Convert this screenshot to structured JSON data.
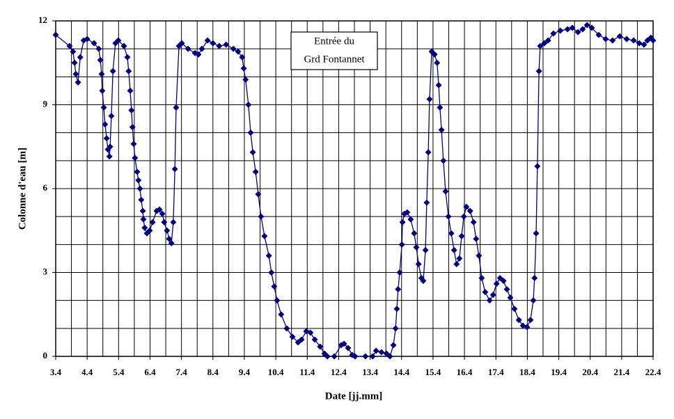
{
  "chart_data": {
    "type": "line",
    "xlabel": "Date [jj.mm]",
    "ylabel": "Colonne d'eau [m]",
    "annotation": [
      "Entrée du",
      "Grd Fontannet"
    ],
    "xlim": [
      3.4,
      22.4
    ],
    "ylim": [
      0,
      12
    ],
    "xticks": [
      3.4,
      4.4,
      5.4,
      6.4,
      7.4,
      8.4,
      9.4,
      10.4,
      11.4,
      12.4,
      13.4,
      14.4,
      15.4,
      16.4,
      17.4,
      18.4,
      19.4,
      20.4,
      21.4,
      22.4
    ],
    "yticks": [
      0,
      3,
      6,
      9,
      12
    ],
    "x_minor_grid": [
      3.9,
      4.9,
      5.9,
      6.9,
      7.9,
      8.9,
      9.9,
      10.9,
      11.9,
      12.9,
      13.9,
      14.9,
      15.9,
      16.9,
      17.9,
      18.9,
      19.9,
      20.9,
      21.9
    ],
    "y_minor_grid": [
      1,
      2,
      4,
      5,
      7,
      8,
      10,
      11
    ],
    "grid": true,
    "series": [
      {
        "color": "#000080",
        "marker": "diamond",
        "x": [
          3.4,
          3.84,
          3.95,
          4.0,
          4.04,
          4.11,
          4.18,
          4.29,
          4.4,
          4.62,
          4.77,
          4.82,
          4.86,
          4.88,
          4.93,
          4.97,
          5.02,
          5.06,
          5.11,
          5.13,
          5.17,
          5.22,
          5.3,
          5.39,
          5.57,
          5.68,
          5.72,
          5.77,
          5.81,
          5.84,
          5.88,
          5.92,
          5.99,
          6.03,
          6.08,
          6.12,
          6.17,
          6.19,
          6.23,
          6.3,
          6.39,
          6.48,
          6.61,
          6.7,
          6.79,
          6.85,
          6.94,
          7.01,
          7.08,
          7.14,
          7.19,
          7.23,
          7.32,
          7.41,
          7.61,
          7.83,
          7.94,
          8.05,
          8.23,
          8.4,
          8.6,
          8.82,
          9.05,
          9.2,
          9.33,
          9.38,
          9.44,
          9.53,
          9.6,
          9.67,
          9.76,
          9.84,
          9.93,
          10.04,
          10.18,
          10.26,
          10.35,
          10.44,
          10.57,
          10.75,
          10.93,
          11.11,
          11.22,
          11.37,
          11.5,
          11.64,
          11.81,
          11.95,
          12.04,
          12.26,
          12.48,
          12.57,
          12.7,
          12.83,
          12.92,
          13.25,
          13.48,
          13.59,
          13.76,
          13.92,
          14.03,
          14.14,
          14.21,
          14.25,
          14.29,
          14.34,
          14.41,
          14.43,
          14.49,
          14.58,
          14.69,
          14.8,
          14.87,
          14.94,
          15.03,
          15.09,
          15.16,
          15.2,
          15.25,
          15.29,
          15.36,
          15.45,
          15.53,
          15.58,
          15.62,
          15.67,
          15.73,
          15.8,
          15.89,
          15.98,
          16.07,
          16.15,
          16.24,
          16.31,
          16.38,
          16.46,
          16.58,
          16.69,
          16.77,
          16.86,
          16.95,
          17.06,
          17.2,
          17.31,
          17.42,
          17.53,
          17.64,
          17.75,
          17.86,
          17.99,
          18.13,
          18.26,
          18.39,
          18.5,
          18.59,
          18.63,
          18.68,
          18.72,
          18.77,
          18.81,
          18.94,
          19.06,
          19.23,
          19.45,
          19.68,
          19.83,
          20.01,
          20.16,
          20.3,
          20.45,
          20.67,
          20.89,
          21.11,
          21.34,
          21.56,
          21.78,
          21.96,
          22.11,
          22.22,
          22.33,
          22.4
        ],
        "values": [
          11.5,
          11.1,
          10.9,
          10.5,
          10.1,
          9.8,
          10.7,
          11.3,
          11.35,
          11.2,
          11.0,
          10.6,
          10.1,
          9.5,
          8.9,
          8.3,
          7.8,
          7.4,
          7.15,
          7.5,
          8.6,
          10.2,
          11.2,
          11.3,
          11.1,
          10.7,
          10.2,
          9.5,
          8.8,
          8.2,
          7.6,
          7.1,
          6.6,
          6.3,
          6.0,
          5.6,
          5.2,
          4.9,
          4.6,
          4.4,
          4.5,
          4.8,
          5.2,
          5.25,
          5.1,
          4.8,
          4.5,
          4.2,
          4.05,
          4.8,
          6.7,
          8.9,
          11.1,
          11.2,
          11.0,
          10.85,
          10.8,
          11.0,
          11.3,
          11.2,
          11.1,
          11.15,
          11.0,
          10.9,
          10.7,
          10.3,
          9.9,
          9.0,
          8.0,
          7.3,
          6.6,
          5.8,
          5.0,
          4.3,
          3.6,
          3.0,
          2.5,
          2.0,
          1.5,
          1.0,
          0.7,
          0.5,
          0.6,
          0.9,
          0.85,
          0.6,
          0.35,
          0.1,
          0,
          0,
          0.4,
          0.45,
          0.3,
          0.05,
          0,
          0,
          0,
          0.2,
          0.15,
          0.1,
          0,
          0.4,
          1.0,
          1.7,
          2.4,
          3.0,
          4.0,
          4.8,
          5.1,
          5.15,
          4.9,
          4.4,
          3.9,
          3.3,
          2.8,
          2.7,
          3.8,
          5.5,
          7.3,
          9.2,
          10.9,
          10.8,
          10.5,
          9.7,
          8.9,
          8.1,
          7.0,
          5.9,
          5.0,
          4.4,
          3.8,
          3.3,
          3.5,
          4.3,
          5.0,
          5.35,
          5.2,
          4.8,
          4.2,
          3.6,
          2.8,
          2.3,
          2.0,
          2.2,
          2.6,
          2.8,
          2.7,
          2.4,
          2.1,
          1.7,
          1.3,
          1.1,
          1.05,
          1.3,
          2.0,
          2.8,
          4.4,
          6.8,
          10.2,
          11.1,
          11.2,
          11.3,
          11.55,
          11.65,
          11.7,
          11.75,
          11.6,
          11.7,
          11.85,
          11.75,
          11.5,
          11.35,
          11.3,
          11.45,
          11.35,
          11.3,
          11.2,
          11.15,
          11.3,
          11.4,
          11.3
        ]
      }
    ]
  }
}
